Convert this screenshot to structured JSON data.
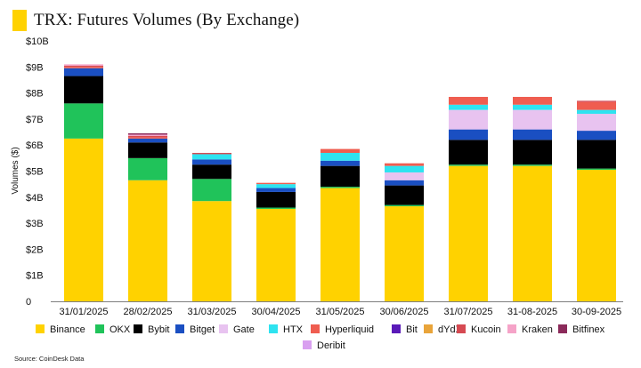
{
  "title": "TRX: Futures Volumes (By Exchange)",
  "source": "Source: CoinDesk Data",
  "chart_data": {
    "type": "bar",
    "stacked": true,
    "title": "TRX: Futures Volumes (By Exchange)",
    "xlabel": "",
    "ylabel": "Volumes ($)",
    "ylim": [
      0,
      10
    ],
    "y_unit": "billion USD",
    "y_ticks": [
      "0",
      "$1B",
      "$2B",
      "$3B",
      "$4B",
      "$5B",
      "$6B",
      "$7B",
      "$8B",
      "$9B",
      "$10B"
    ],
    "grid": false,
    "legend_position": "bottom",
    "categories": [
      "31/01/2025",
      "28/02/2025",
      "31/03/2025",
      "30/04/2025",
      "31/05/2025",
      "30/06/2025",
      "31/07/2025",
      "31-08-2025",
      "30-09-2025"
    ],
    "series": [
      {
        "name": "Binance",
        "color": "#ffd200",
        "values": [
          6.25,
          4.65,
          3.85,
          3.55,
          4.35,
          3.65,
          5.2,
          5.2,
          5.05
        ]
      },
      {
        "name": "OKX",
        "color": "#20c35a",
        "values": [
          1.35,
          0.85,
          0.85,
          0.05,
          0.05,
          0.05,
          0.05,
          0.05,
          0.05
        ]
      },
      {
        "name": "Bybit",
        "color": "#000000",
        "values": [
          1.05,
          0.6,
          0.55,
          0.6,
          0.8,
          0.75,
          0.95,
          0.95,
          1.1
        ]
      },
      {
        "name": "Bitget",
        "color": "#1a4fc2",
        "values": [
          0.3,
          0.15,
          0.2,
          0.15,
          0.2,
          0.2,
          0.4,
          0.4,
          0.35
        ]
      },
      {
        "name": "Gate",
        "color": "#e8c3f0",
        "values": [
          0.0,
          0.0,
          0.0,
          0.0,
          0.0,
          0.3,
          0.75,
          0.75,
          0.65
        ]
      },
      {
        "name": "HTX",
        "color": "#2ee3f0",
        "values": [
          0.0,
          0.0,
          0.2,
          0.15,
          0.3,
          0.25,
          0.2,
          0.2,
          0.15
        ]
      },
      {
        "name": "Hyperliquid",
        "color": "#ef5d50",
        "values": [
          0.05,
          0.05,
          0.0,
          0.05,
          0.15,
          0.1,
          0.3,
          0.3,
          0.3
        ]
      },
      {
        "name": "Bit",
        "color": "#5a1ab8",
        "values": [
          0.0,
          0.0,
          0.0,
          0.0,
          0.0,
          0.0,
          0.0,
          0.0,
          0.0
        ]
      },
      {
        "name": "dYdX",
        "color": "#e9a43a",
        "values": [
          0.0,
          0.0,
          0.0,
          0.0,
          0.0,
          0.0,
          0.0,
          0.0,
          0.0
        ]
      },
      {
        "name": "Kucoin",
        "color": "#d64a52",
        "values": [
          0.05,
          0.05,
          0.05,
          0.0,
          0.0,
          0.0,
          0.0,
          0.0,
          0.05
        ]
      },
      {
        "name": "Kraken",
        "color": "#f5a3c8",
        "values": [
          0.05,
          0.05,
          0.0,
          0.0,
          0.0,
          0.0,
          0.0,
          0.0,
          0.0
        ]
      },
      {
        "name": "Bitfinex",
        "color": "#8b2a5a",
        "values": [
          0.0,
          0.05,
          0.0,
          0.0,
          0.0,
          0.0,
          0.0,
          0.0,
          0.0
        ]
      },
      {
        "name": "Deribit",
        "color": "#d9a0f0",
        "values": [
          0.0,
          0.0,
          0.0,
          0.0,
          0.0,
          0.0,
          0.0,
          0.0,
          0.0
        ]
      }
    ]
  }
}
